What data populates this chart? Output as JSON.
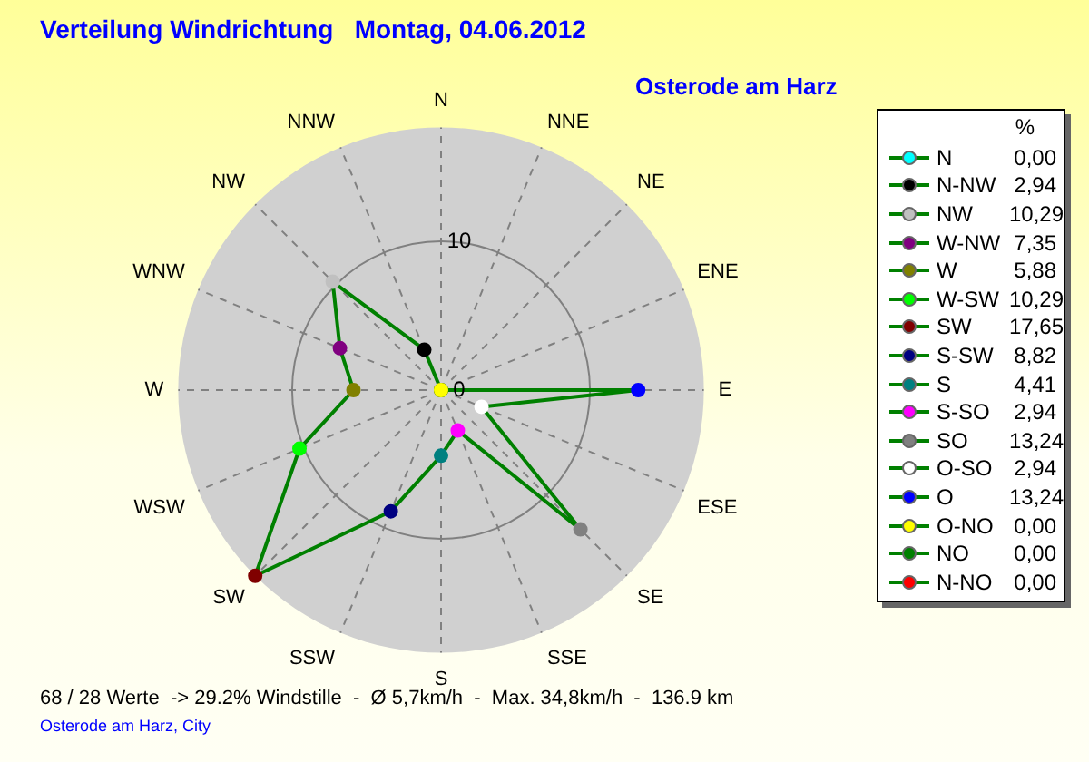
{
  "chart_data": {
    "type": "radar",
    "title": "Verteilung Windrichtung   Montag, 04.06.2012",
    "subtitle": "Osterode am Harz",
    "legend_title": "%",
    "grid": true,
    "marker": "circle",
    "line_style": "solid",
    "categories": [
      "N",
      "NNE",
      "NE",
      "ENE",
      "E",
      "ESE",
      "SE",
      "SSE",
      "S",
      "SSW",
      "SW",
      "WSW",
      "W",
      "WNW",
      "NW",
      "NNW"
    ],
    "ylim": [
      0,
      17.65
    ],
    "yticks": [
      0,
      10
    ],
    "series": [
      {
        "color": "#008000",
        "values": [
          0,
          0,
          0,
          0,
          13.24,
          2.94,
          13.24,
          2.94,
          4.41,
          8.82,
          17.65,
          10.29,
          5.88,
          7.35,
          10.29,
          2.94
        ],
        "colors": [
          "#00ffff",
          "#ff0000",
          "#008000",
          "#ffff00",
          "#0000ff",
          "#ffffff",
          "#808080",
          "#ff00ff",
          "#008080",
          "#000080",
          "#800000",
          "#00ff00",
          "#808000",
          "#800080",
          "#c0c0c0",
          "#000000"
        ]
      }
    ],
    "annotations": [
      "N",
      "0,00",
      "N-NW",
      "2,94",
      "NW",
      "10,29",
      "W-NW",
      "7,35",
      "W",
      "5,88",
      "W-SW",
      "10,29",
      "SW",
      "17,65",
      "S-SW",
      "8,82",
      "S",
      "4,41",
      "S-SO",
      "2,94",
      "SO",
      "13,24",
      "O-SO",
      "2,94",
      "O",
      "13,24",
      "O-NO",
      "0,00",
      "NO",
      "0,00",
      "N-NO",
      "0,00",
      "68 / 28 Werte  -> 29.2% Windstille  -  Ø 5,7km/h  -  Max. 34,8km/h  -  136.9 km",
      "Osterode am Harz, City"
    ]
  }
}
